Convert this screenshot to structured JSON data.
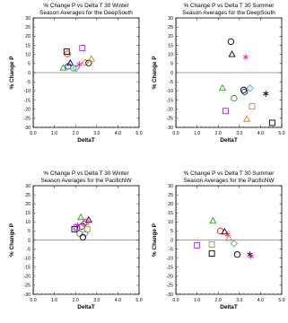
{
  "chart_data": [
    {
      "type": "scatter",
      "title": "% Change P vs Delta T 30 Winter",
      "subtitle": "Season Averages for the DeepSouth",
      "xlabel": "DeltaT",
      "ylabel": "% Change P",
      "xlim": [
        0,
        5
      ],
      "ylim": [
        -30,
        30
      ],
      "xticks": [
        "0.0",
        "1.0",
        "2.0",
        "3.0",
        "4.0",
        "5.0"
      ],
      "yticks": [
        "30",
        "25",
        "20",
        "15",
        "10",
        "5",
        "0",
        "-5",
        "-10",
        "-15",
        "-20",
        "-25",
        "-30"
      ],
      "zero_line": 0,
      "points": [
        {
          "x": 1.58,
          "y": 11.5,
          "marker": "square",
          "color": "#000000"
        },
        {
          "x": 1.62,
          "y": 10.3,
          "marker": "circle",
          "color": "#e0301e"
        },
        {
          "x": 1.75,
          "y": 5.2,
          "marker": "triangle",
          "color": "#000000"
        },
        {
          "x": 1.65,
          "y": 3.5,
          "marker": "circle",
          "color": "#1a1aff"
        },
        {
          "x": 1.42,
          "y": 2.6,
          "marker": "triangle",
          "color": "#2ca02c"
        },
        {
          "x": 1.9,
          "y": 2.5,
          "marker": "circle",
          "color": "#2ca02c"
        },
        {
          "x": 2.02,
          "y": 2.4,
          "marker": "diamond",
          "color": "#4fa0e0"
        },
        {
          "x": 2.18,
          "y": 4.5,
          "marker": "asterisk",
          "color": "#e0208c"
        },
        {
          "x": 2.32,
          "y": 13.5,
          "marker": "square",
          "color": "#9b30e0"
        },
        {
          "x": 2.45,
          "y": 5.5,
          "marker": "diamond",
          "color": "#e08020"
        },
        {
          "x": 2.62,
          "y": 5.3,
          "marker": "circle",
          "color": "#000000"
        },
        {
          "x": 2.75,
          "y": 7.5,
          "marker": "triangle",
          "color": "#e08020"
        }
      ]
    },
    {
      "type": "scatter",
      "title": "% Change P vs Delta T 30 Summer",
      "subtitle": "Season Averages for the DeepSouth",
      "xlabel": "DeltaT",
      "ylabel": "% Change P",
      "xlim": [
        0,
        5
      ],
      "ylim": [
        -30,
        30
      ],
      "xticks": [
        "0.0",
        "1.0",
        "2.0",
        "3.0",
        "4.0",
        "5.0"
      ],
      "yticks": [
        "30",
        "25",
        "20",
        "15",
        "10",
        "5",
        "0",
        "-5",
        "-10",
        "-15",
        "-20",
        "-25",
        "-30"
      ],
      "zero_line": 0,
      "points": [
        {
          "x": 2.6,
          "y": 17,
          "marker": "circle",
          "color": "#000000"
        },
        {
          "x": 2.65,
          "y": 10,
          "marker": "triangle",
          "color": "#000000"
        },
        {
          "x": 3.3,
          "y": 8.5,
          "marker": "asterisk",
          "color": "#e0208c"
        },
        {
          "x": 2.2,
          "y": -8.5,
          "marker": "triangle",
          "color": "#2ca02c"
        },
        {
          "x": 2.75,
          "y": -14,
          "marker": "circle",
          "color": "#2ca02c"
        },
        {
          "x": 3.2,
          "y": -9.5,
          "marker": "circle",
          "color": "#000000"
        },
        {
          "x": 3.25,
          "y": -10.5,
          "marker": "circle",
          "color": "#1a1aff"
        },
        {
          "x": 3.5,
          "y": -8.5,
          "marker": "diamond",
          "color": "#4fa0e0"
        },
        {
          "x": 4.25,
          "y": -11.5,
          "marker": "asterisk",
          "color": "#000000"
        },
        {
          "x": 3.6,
          "y": -18.5,
          "marker": "square",
          "color": "#e08020"
        },
        {
          "x": 2.35,
          "y": -21,
          "marker": "square",
          "color": "#9b30e0"
        },
        {
          "x": 3.35,
          "y": -25.5,
          "marker": "triangle",
          "color": "#e08020"
        },
        {
          "x": 4.55,
          "y": -27.5,
          "marker": "square",
          "color": "#000000"
        }
      ]
    },
    {
      "type": "scatter",
      "title": "% Change P vs Delta T 30 Winter",
      "subtitle": "Season Averages for the PacificNW",
      "xlabel": "DeltaT",
      "ylabel": "% Change P",
      "xlim": [
        0,
        5
      ],
      "ylim": [
        -30,
        30
      ],
      "xticks": [
        "0.0",
        "1.0",
        "2.0",
        "3.0",
        "4.0",
        "5.0"
      ],
      "yticks": [
        "30",
        "25",
        "20",
        "15",
        "10",
        "5",
        "0",
        "-5",
        "-10",
        "-15",
        "-20",
        "-25",
        "-30"
      ],
      "zero_line": 0,
      "points": [
        {
          "x": 2.25,
          "y": 12.5,
          "marker": "triangle",
          "color": "#2ca02c"
        },
        {
          "x": 2.62,
          "y": 11,
          "marker": "triangle",
          "color": "#000000"
        },
        {
          "x": 2.5,
          "y": 10,
          "marker": "circle",
          "color": "#e0301e"
        },
        {
          "x": 2.4,
          "y": 9,
          "marker": "diamond",
          "color": "#9b30e0"
        },
        {
          "x": 2.1,
          "y": 8,
          "marker": "asterisk",
          "color": "#e0208c"
        },
        {
          "x": 2.3,
          "y": 7.5,
          "marker": "circle",
          "color": "#1a1aff"
        },
        {
          "x": 1.95,
          "y": 6,
          "marker": "square",
          "color": "#000000"
        },
        {
          "x": 2.05,
          "y": 7,
          "marker": "square",
          "color": "#9b30e0"
        },
        {
          "x": 2.55,
          "y": 6,
          "marker": "square",
          "color": "#e08020"
        },
        {
          "x": 2.2,
          "y": 3.5,
          "marker": "circle",
          "color": "#2ca02c"
        },
        {
          "x": 2.45,
          "y": 3.5,
          "marker": "diamond",
          "color": "#4fa0e0"
        },
        {
          "x": 2.35,
          "y": 1.5,
          "marker": "circle",
          "color": "#000000"
        }
      ]
    },
    {
      "type": "scatter",
      "title": "% Change P vs Delta T 30 Summer",
      "subtitle": "Season Averages for the PacificNW",
      "xlabel": "DeltaT",
      "ylabel": "% Change P",
      "xlim": [
        0,
        5
      ],
      "ylim": [
        -30,
        30
      ],
      "xticks": [
        "0.0",
        "1.0",
        "2.0",
        "3.0",
        "4.0",
        "5.0"
      ],
      "yticks": [
        "30",
        "25",
        "20",
        "15",
        "10",
        "5",
        "0",
        "-5",
        "-10",
        "-15",
        "-20",
        "-25",
        "-30"
      ],
      "zero_line": 0,
      "points": [
        {
          "x": 1.75,
          "y": 10.5,
          "marker": "triangle",
          "color": "#2ca02c"
        },
        {
          "x": 2.1,
          "y": 5,
          "marker": "circle",
          "color": "#e0301e"
        },
        {
          "x": 2.3,
          "y": 4.5,
          "marker": "triangle",
          "color": "#000000"
        },
        {
          "x": 2.45,
          "y": 3,
          "marker": "asterisk",
          "color": "#e0208c"
        },
        {
          "x": 2.5,
          "y": 1,
          "marker": "triangle",
          "color": "#e08020"
        },
        {
          "x": 2.75,
          "y": -2,
          "marker": "diamond",
          "color": "#4fa0e0"
        },
        {
          "x": 1.0,
          "y": -3,
          "marker": "square",
          "color": "#9b30e0"
        },
        {
          "x": 1.7,
          "y": -2.5,
          "marker": "square",
          "color": "#e08020"
        },
        {
          "x": 1.7,
          "y": -7.5,
          "marker": "square",
          "color": "#000000"
        },
        {
          "x": 2.9,
          "y": -8,
          "marker": "circle",
          "color": "#000000"
        },
        {
          "x": 3.5,
          "y": -8,
          "marker": "asterisk",
          "color": "#000000"
        },
        {
          "x": 3.55,
          "y": -9,
          "marker": "asterisk",
          "color": "#e0208c"
        }
      ]
    }
  ]
}
